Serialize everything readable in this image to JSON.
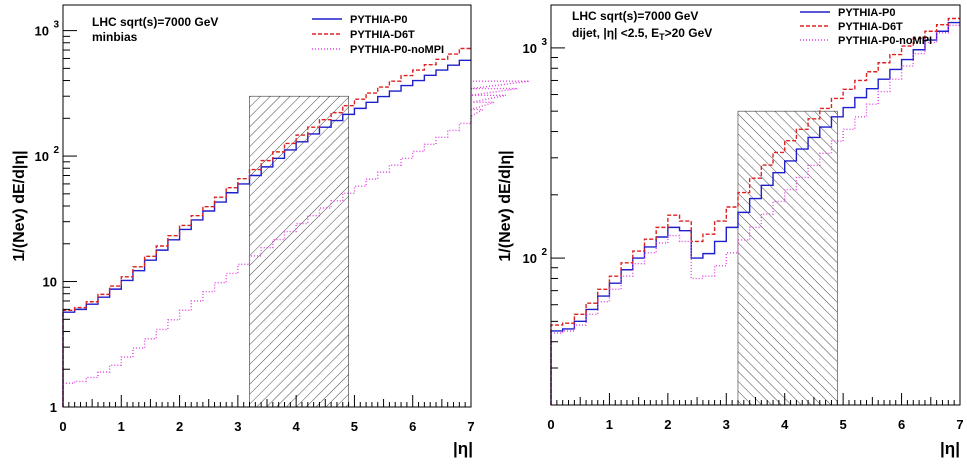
{
  "chart_data": [
    {
      "type": "line",
      "ylabel": "1/(Nev) dE/d|η|",
      "xlabel": "|η|",
      "yscale": "log",
      "xlim": [
        0,
        7
      ],
      "ylim": [
        1,
        1600
      ],
      "xticks": [
        "0",
        "1",
        "2",
        "3",
        "4",
        "5",
        "6",
        "7"
      ],
      "yticks": [
        {
          "value": 1,
          "label": "1"
        },
        {
          "value": 10,
          "label": "10"
        },
        {
          "value": 100,
          "label": "10",
          "sup": "2"
        },
        {
          "value": 1000,
          "label": "10",
          "sup": "3"
        }
      ],
      "annotation": {
        "lines": [
          "LHC sqrt(s)=7000 GeV",
          "minbias"
        ]
      },
      "shaded_region": {
        "x": [
          3.2,
          4.9
        ],
        "y_top": 300
      },
      "legend_position": "top-right",
      "bin_width": 0.2,
      "series": [
        {
          "name": "PYTHIA-P0",
          "color": "#1f1fcc",
          "style": "solid",
          "values": [
            5.7,
            6.0,
            6.6,
            7.5,
            8.7,
            10.2,
            12.2,
            14.8,
            17.8,
            21.5,
            26.0,
            31.0,
            36.5,
            43.0,
            51.0,
            60.0,
            70.0,
            82.0,
            96.0,
            112.0,
            130.0,
            150.0,
            170.0,
            192.0,
            215.0,
            240.0,
            268.0,
            298.0,
            330.0,
            365.0,
            400.0,
            440.0,
            485.0,
            530.0,
            580.0
          ]
        },
        {
          "name": "PYTHIA-D6T",
          "color": "#dd2222",
          "style": "dashed",
          "values": [
            5.9,
            6.2,
            6.9,
            7.9,
            9.2,
            10.9,
            13.1,
            15.9,
            19.2,
            23.2,
            28.0,
            33.5,
            39.5,
            47.0,
            56.0,
            66.0,
            78.0,
            92.0,
            108.0,
            126.0,
            147.0,
            170.0,
            195.0,
            222.0,
            252.0,
            284.0,
            318.0,
            355.0,
            395.0,
            438.0,
            485.0,
            535.0,
            590.0,
            650.0,
            720.0
          ]
        },
        {
          "name": "PYTHIA-P0-noMPI",
          "color": "#e040e0",
          "style": "dotted",
          "values": [
            1.55,
            1.6,
            1.72,
            1.9,
            2.15,
            2.5,
            2.95,
            3.5,
            4.15,
            4.95,
            5.9,
            7.0,
            8.3,
            9.8,
            11.6,
            13.7,
            16.0,
            18.6,
            21.6,
            25.0,
            29.0,
            33.5,
            38.5,
            44.0,
            50.5,
            57.5,
            65.5,
            74.5,
            84.5,
            96.0,
            109.0,
            124.0,
            141.0,
            160.0,
            182.0,
            207.0,
            235.0,
            268.0,
            305.0,
            345.0,
            395.0
          ]
        }
      ]
    },
    {
      "type": "line",
      "ylabel": "1/(Nev) dE/d|η|",
      "xlabel": "|η|",
      "yscale": "log",
      "xlim": [
        0,
        7
      ],
      "ylim": [
        20,
        1600
      ],
      "xticks": [
        "0",
        "1",
        "2",
        "3",
        "4",
        "5",
        "6",
        "7"
      ],
      "yticks": [
        {
          "value": 100,
          "label": "10",
          "sup": "2"
        },
        {
          "value": 1000,
          "label": "10",
          "sup": "3"
        }
      ],
      "annotation": {
        "lines": [
          "LHC sqrt(s)=7000 GeV",
          "dijet, |η| <2.5, E",
          "T",
          ">20 GeV"
        ]
      },
      "shaded_region": {
        "x": [
          3.2,
          4.9
        ],
        "y_top": 500
      },
      "legend_position": "top-right",
      "bin_width": 0.2,
      "series": [
        {
          "name": "PYTHIA-P0",
          "color": "#1f1fcc",
          "style": "solid",
          "values": [
            45.0,
            46.0,
            50.0,
            57.0,
            66.0,
            76.0,
            88.0,
            100.0,
            113.0,
            126.0,
            140.0,
            135.0,
            100.0,
            105.0,
            120.0,
            140.0,
            165.0,
            192.0,
            222.0,
            255.0,
            290.0,
            330.0,
            375.0,
            420.0,
            470.0,
            520.0,
            580.0,
            640.0,
            710.0,
            790.0,
            880.0,
            980.0,
            1090.0,
            1200.0,
            1320.0
          ]
        },
        {
          "name": "PYTHIA-D6T",
          "color": "#dd2222",
          "style": "dashed",
          "values": [
            48.0,
            49.0,
            54.0,
            61.0,
            71.0,
            82.0,
            95.0,
            108.0,
            123.0,
            140.0,
            160.0,
            150.0,
            120.0,
            130.0,
            150.0,
            175.0,
            205.0,
            240.0,
            277.0,
            318.0,
            362.0,
            410.0,
            460.0,
            515.0,
            575.0,
            635.0,
            700.0,
            770.0,
            850.0,
            930.0,
            1020.0,
            1110.0,
            1200.0,
            1290.0,
            1380.0
          ]
        },
        {
          "name": "PYTHIA-P0-noMPI",
          "color": "#e040e0",
          "style": "dotted",
          "values": [
            44.0,
            45.0,
            48.0,
            54.0,
            62.0,
            71.0,
            82.0,
            94.0,
            106.0,
            118.0,
            128.0,
            120.0,
            80.0,
            82.0,
            92.0,
            106.0,
            122.0,
            140.0,
            162.0,
            186.0,
            212.0,
            242.0,
            276.0,
            315.0,
            360.0,
            410.0,
            470.0,
            540.0,
            620.0,
            710.0,
            820.0,
            940.0,
            1060.0,
            1180.0,
            1280.0
          ]
        }
      ]
    }
  ]
}
